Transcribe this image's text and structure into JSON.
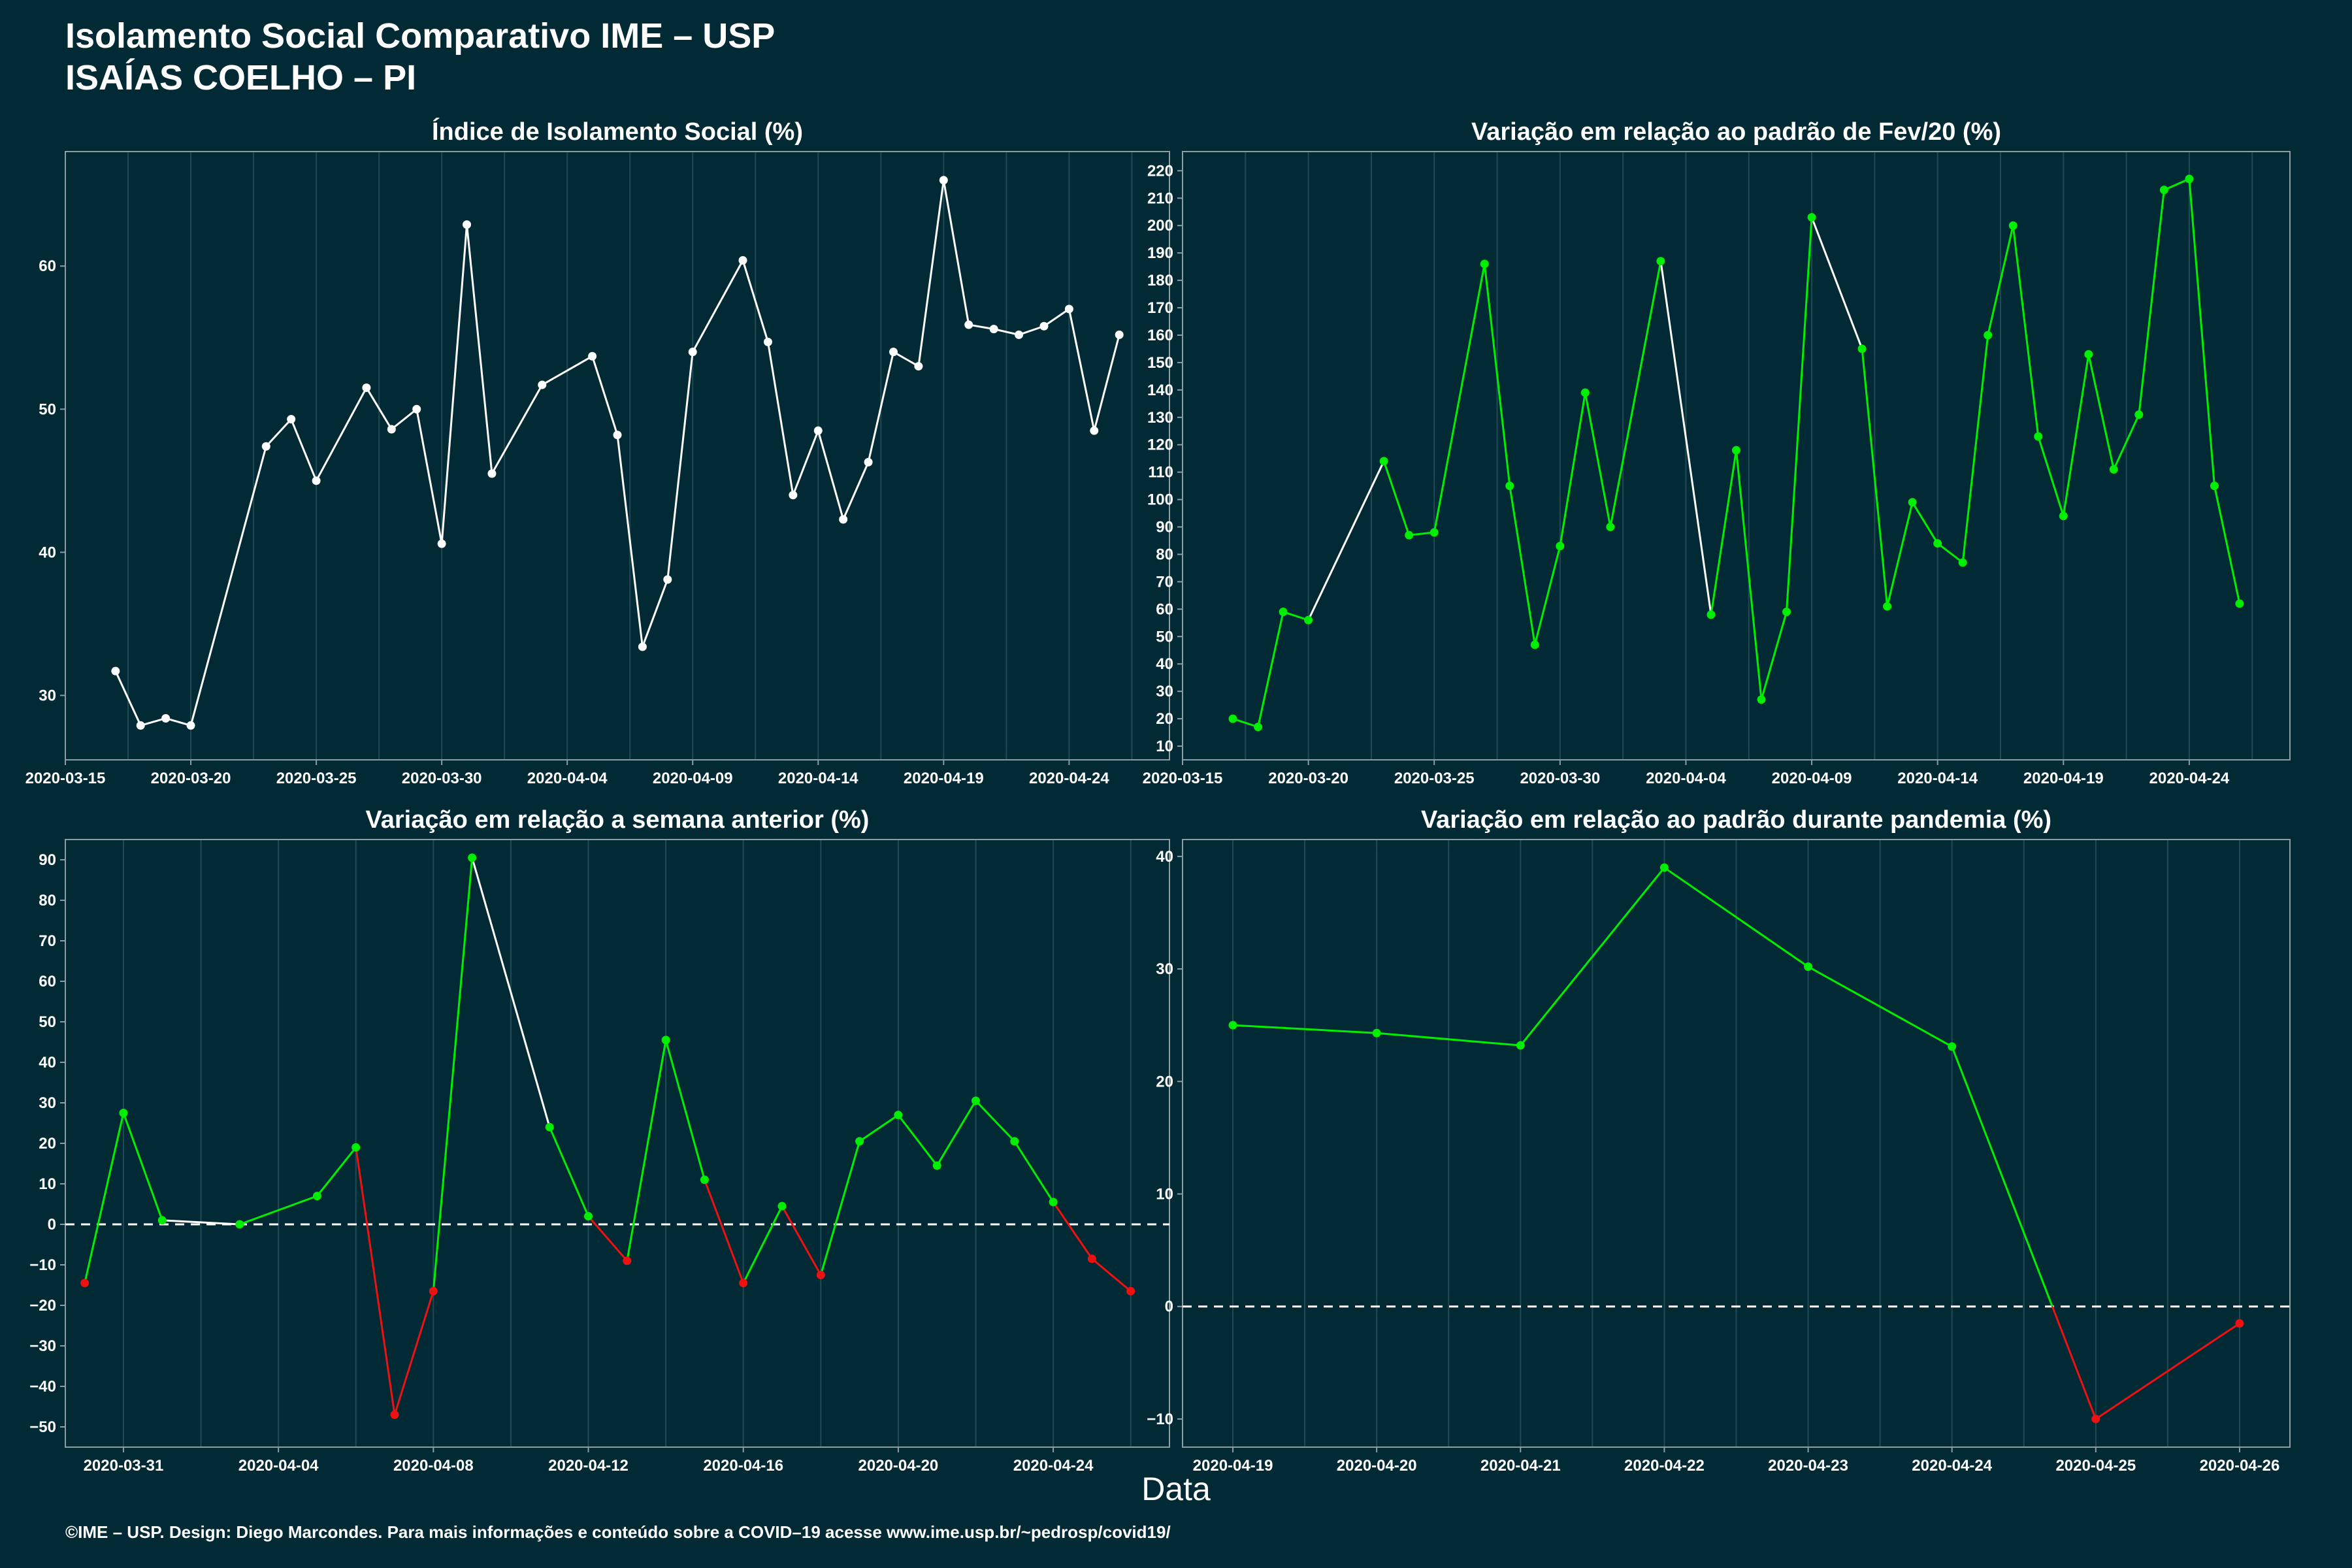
{
  "header": {
    "title": "Isolamento Social Comparativo IME – USP",
    "subtitle": "ISAÍAS COELHO – PI"
  },
  "xaxis_title": "Data",
  "footer": "©IME – USP. Design: Diego Marcondes. Para mais informações e conteúdo sobre a COVID–19 acesse www.ime.usp.br/~pedrosp/covid19/",
  "colors": {
    "background": "#022a35",
    "neutral": "#ffffff",
    "positive": "#00ee00",
    "negative": "#ee1111",
    "grid": "#1f4a55",
    "axis": "#8a9ea4"
  },
  "chart_data": [
    {
      "id": "indice",
      "type": "line",
      "title": "Índice de Isolamento Social (%)",
      "color_mode": "neutral",
      "x_dates": true,
      "xlim": [
        "2020-03-15",
        "2020-04-28"
      ],
      "ylim": [
        25.5,
        68
      ],
      "xticks": [
        "2020-03-15",
        "2020-03-20",
        "2020-03-25",
        "2020-03-30",
        "2020-04-04",
        "2020-04-09",
        "2020-04-14",
        "2020-04-19",
        "2020-04-24"
      ],
      "yticks": [
        30,
        40,
        50,
        60
      ],
      "x": [
        "2020-03-17",
        "2020-03-18",
        "2020-03-19",
        "2020-03-20",
        "2020-03-23",
        "2020-03-24",
        "2020-03-25",
        "2020-03-27",
        "2020-03-28",
        "2020-03-29",
        "2020-03-30",
        "2020-03-31",
        "2020-04-01",
        "2020-04-03",
        "2020-04-05",
        "2020-04-06",
        "2020-04-07",
        "2020-04-08",
        "2020-04-09",
        "2020-04-11",
        "2020-04-12",
        "2020-04-13",
        "2020-04-14",
        "2020-04-15",
        "2020-04-16",
        "2020-04-17",
        "2020-04-18",
        "2020-04-19",
        "2020-04-20",
        "2020-04-21",
        "2020-04-22",
        "2020-04-23",
        "2020-04-24",
        "2020-04-25",
        "2020-04-26"
      ],
      "values": [
        31.7,
        27.9,
        28.4,
        27.9,
        47.4,
        49.3,
        45.0,
        51.5,
        48.6,
        50.0,
        40.6,
        62.9,
        45.5,
        51.7,
        53.7,
        48.2,
        33.4,
        38.1,
        54.0,
        60.4,
        54.7,
        44.0,
        48.5,
        42.3,
        46.3,
        54.0,
        53.0,
        66.0,
        55.9,
        55.6,
        55.2,
        55.8,
        57.0,
        48.5,
        55.2
      ]
    },
    {
      "id": "fev",
      "type": "line",
      "title": "Variação em relação ao padrão de Fev/20 (%)",
      "color_mode": "weekly",
      "x_dates": true,
      "xlim": [
        "2020-03-15",
        "2020-04-28"
      ],
      "ylim": [
        5,
        227
      ],
      "xticks": [
        "2020-03-15",
        "2020-03-20",
        "2020-03-25",
        "2020-03-30",
        "2020-04-04",
        "2020-04-09",
        "2020-04-14",
        "2020-04-19",
        "2020-04-24"
      ],
      "yticks": [
        10,
        20,
        30,
        40,
        50,
        60,
        70,
        80,
        90,
        100,
        110,
        120,
        130,
        140,
        150,
        160,
        170,
        180,
        190,
        200,
        210,
        220
      ],
      "x": [
        "2020-03-17",
        "2020-03-18",
        "2020-03-19",
        "2020-03-20",
        "2020-03-23",
        "2020-03-24",
        "2020-03-25",
        "2020-03-27",
        "2020-03-28",
        "2020-03-29",
        "2020-03-30",
        "2020-03-31",
        "2020-04-01",
        "2020-04-03",
        "2020-04-05",
        "2020-04-06",
        "2020-04-07",
        "2020-04-08",
        "2020-04-09",
        "2020-04-11",
        "2020-04-12",
        "2020-04-13",
        "2020-04-14",
        "2020-04-15",
        "2020-04-16",
        "2020-04-17",
        "2020-04-18",
        "2020-04-19",
        "2020-04-20",
        "2020-04-21",
        "2020-04-22",
        "2020-04-23",
        "2020-04-24",
        "2020-04-25",
        "2020-04-26"
      ],
      "values": [
        20,
        17,
        59,
        56,
        114,
        87,
        88,
        186,
        105,
        47,
        83,
        139,
        90,
        187,
        58,
        118,
        27,
        59,
        203,
        155,
        61,
        99,
        84,
        77,
        160,
        200,
        123,
        94,
        153,
        111,
        131,
        213,
        217,
        105,
        62
      ],
      "segment_flags": [
        "g",
        "g",
        "g",
        "w",
        "g",
        "g",
        "g",
        "g",
        "g",
        "g",
        "g",
        "g",
        "g",
        "w",
        "g",
        "g",
        "g",
        "g",
        "w",
        "g",
        "g",
        "g",
        "g",
        "g",
        "g",
        "g",
        "g",
        "g",
        "g",
        "g",
        "g",
        "g",
        "g",
        "g"
      ]
    },
    {
      "id": "semana",
      "type": "line",
      "title": "Variação em relação a semana anterior (%)",
      "color_mode": "sign",
      "zero_line": true,
      "x_dates": true,
      "xlim": [
        "2020-03-29.5",
        "2020-04-27"
      ],
      "ylim": [
        -55,
        95
      ],
      "xticks": [
        "2020-03-31",
        "2020-04-04",
        "2020-04-08",
        "2020-04-12",
        "2020-04-16",
        "2020-04-20",
        "2020-04-24"
      ],
      "yticks": [
        -50,
        -40,
        -30,
        -20,
        -10,
        0,
        10,
        20,
        30,
        40,
        50,
        60,
        70,
        80,
        90
      ],
      "x": [
        "2020-03-30",
        "2020-03-31",
        "2020-04-01",
        "2020-04-03",
        "2020-04-05",
        "2020-04-06",
        "2020-04-07",
        "2020-04-08",
        "2020-04-09",
        "2020-04-11",
        "2020-04-12",
        "2020-04-13",
        "2020-04-14",
        "2020-04-15",
        "2020-04-16",
        "2020-04-17",
        "2020-04-18",
        "2020-04-19",
        "2020-04-20",
        "2020-04-21",
        "2020-04-22",
        "2020-04-23",
        "2020-04-24",
        "2020-04-25",
        "2020-04-26"
      ],
      "values": [
        -14.5,
        27.5,
        1,
        0,
        7,
        19,
        -47,
        -16.5,
        90.5,
        24,
        2,
        -9,
        45.5,
        11,
        -14.5,
        4.5,
        -12.5,
        20.5,
        27,
        14.5,
        30.5,
        20.5,
        5.5,
        -8.5,
        -16.5
      ],
      "segment_flags": [
        "g",
        "g",
        "w",
        "g",
        "g",
        "r",
        "r",
        "g",
        "w",
        "g",
        "r",
        "g",
        "g",
        "r",
        "g",
        "r",
        "g",
        "g",
        "g",
        "g",
        "g",
        "g",
        "r",
        "r"
      ]
    },
    {
      "id": "pandemia",
      "type": "line",
      "title": "Variação em relação ao padrão durante pandemia (%)",
      "color_mode": "sign",
      "zero_line": true,
      "x_dates": true,
      "xlim": [
        "2020-04-18.65",
        "2020-04-26.35"
      ],
      "ylim": [
        -12.5,
        41.5
      ],
      "xticks": [
        "2020-04-19",
        "2020-04-20",
        "2020-04-21",
        "2020-04-22",
        "2020-04-23",
        "2020-04-24",
        "2020-04-25",
        "2020-04-26"
      ],
      "yticks": [
        -10,
        0,
        10,
        20,
        30,
        40
      ],
      "x": [
        "2020-04-19",
        "2020-04-20",
        "2020-04-21",
        "2020-04-22",
        "2020-04-23",
        "2020-04-24",
        "2020-04-25",
        "2020-04-26"
      ],
      "values": [
        25,
        24.3,
        23.2,
        39,
        30.2,
        23.1,
        -10,
        -1.5
      ],
      "segment_flags": [
        "g",
        "g",
        "g",
        "g",
        "g",
        "s",
        "r"
      ]
    }
  ]
}
